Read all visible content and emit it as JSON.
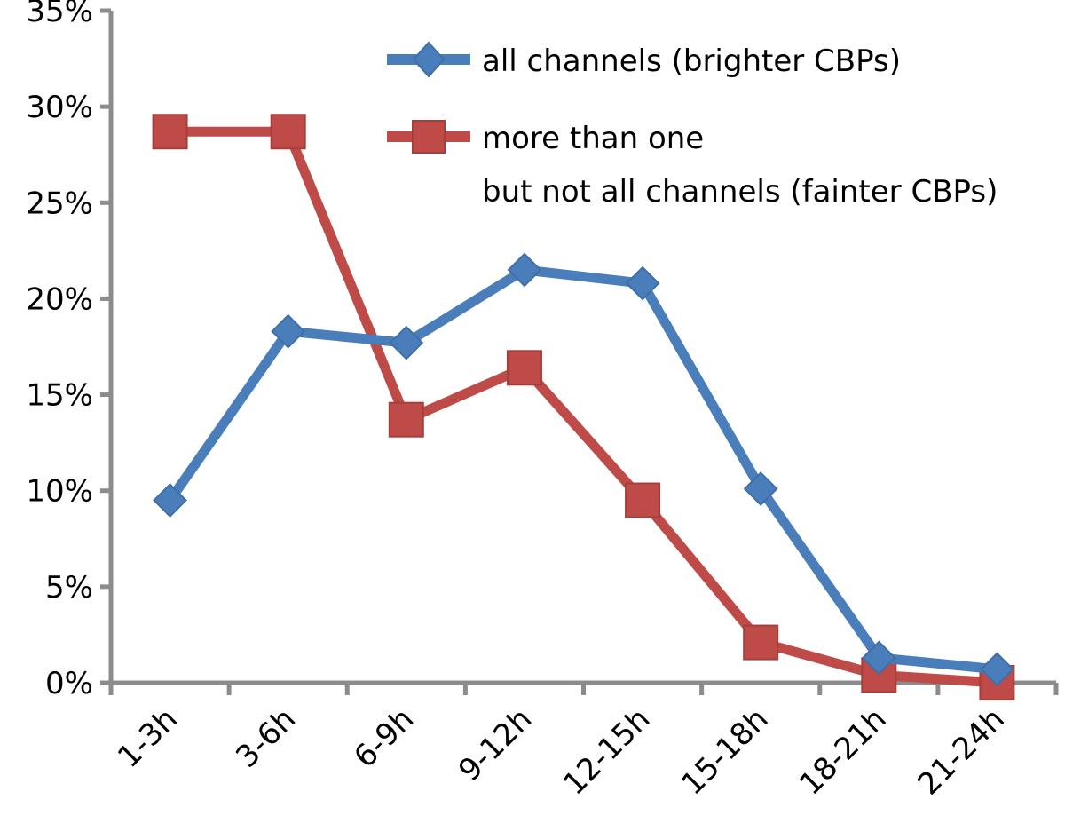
{
  "chart_data": {
    "type": "line",
    "categories": [
      "1-3h",
      "3-6h",
      "6-9h",
      "9-12h",
      "12-15h",
      "15-18h",
      "18-21h",
      "21-24h"
    ],
    "series": [
      {
        "name": "all channels (brighter CBPs)",
        "values": [
          9.5,
          18.3,
          17.7,
          21.5,
          20.8,
          10.1,
          1.3,
          0.7
        ],
        "color": "#4a7ebb",
        "marker": "diamond"
      },
      {
        "name_line1": "more than one",
        "name_line2": "but not all channels (fainter CBPs)",
        "values": [
          28.7,
          28.7,
          13.7,
          16.4,
          9.5,
          2.1,
          0.4,
          0.0
        ],
        "color": "#be4b48",
        "marker": "square"
      }
    ],
    "yticks": [
      "0%",
      "5%",
      "10%",
      "15%",
      "20%",
      "25%",
      "30%",
      "35%"
    ],
    "ylim": [
      0,
      35
    ],
    "title": "",
    "xlabel": "",
    "ylabel": "",
    "grid": false,
    "legend_position": "top-right"
  }
}
